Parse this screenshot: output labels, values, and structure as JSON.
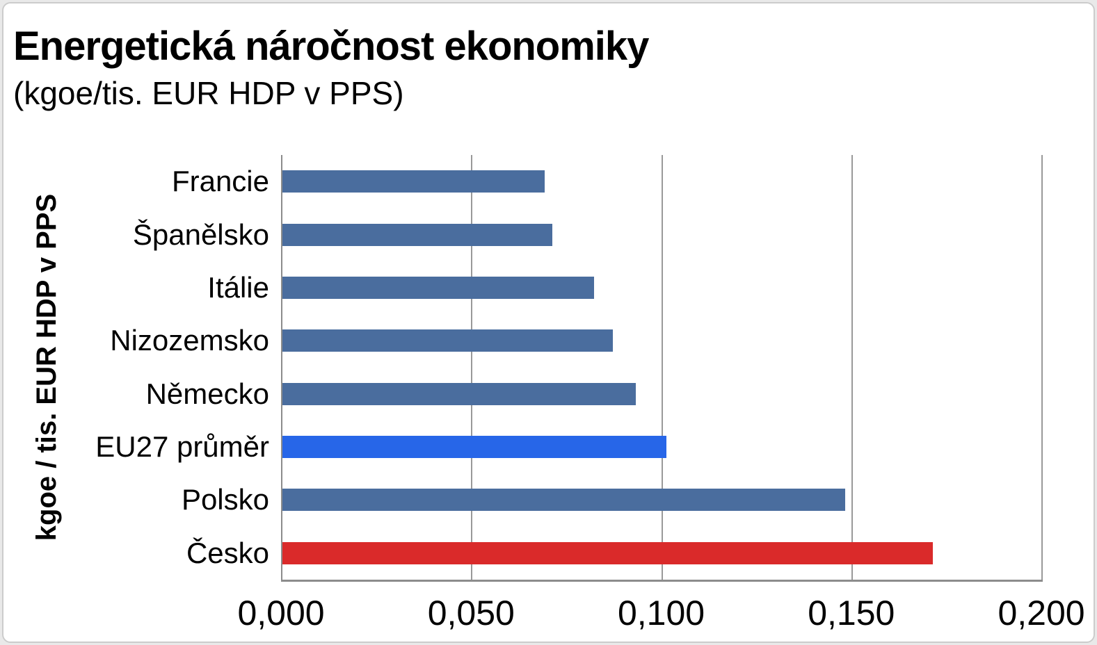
{
  "title": "Energetická náročnost ekonomiky",
  "subtitle": "(kgoe/tis. EUR HDP v PPS)",
  "y_axis_label": "kgoe / tis. EUR HDP v PPS",
  "x_ticks": [
    "0,000",
    "0,050",
    "0,100",
    "0,150",
    "0,200"
  ],
  "colors": {
    "bar_default": "#4A6D9E",
    "bar_highlight_eu27": "#2766E8",
    "bar_highlight_cesko": "#DA2A2A",
    "gridline": "#999999",
    "axis": "#8C8C8C",
    "text": "#000000",
    "frame_border": "#CCCCCC"
  },
  "chart_data": {
    "type": "bar",
    "orientation": "horizontal",
    "title": "Energetická náročnost ekonomiky",
    "subtitle": "(kgoe/tis. EUR HDP v PPS)",
    "xlabel": "",
    "ylabel": "kgoe / tis. EUR HDP v PPS",
    "categories": [
      "Francie",
      "Španělsko",
      "Itálie",
      "Nizozemsko",
      "Německo",
      "EU27 průměr",
      "Polsko",
      "Česko"
    ],
    "values": [
      0.069,
      0.071,
      0.082,
      0.087,
      0.093,
      0.101,
      0.148,
      0.171
    ],
    "bar_colors": [
      "#4A6D9E",
      "#4A6D9E",
      "#4A6D9E",
      "#4A6D9E",
      "#4A6D9E",
      "#2766E8",
      "#4A6D9E",
      "#DA2A2A"
    ],
    "xlim": [
      0,
      0.2
    ],
    "x_tick_labels": [
      "0,000",
      "0,050",
      "0,100",
      "0,150",
      "0,200"
    ],
    "grid": true,
    "legend": false
  }
}
